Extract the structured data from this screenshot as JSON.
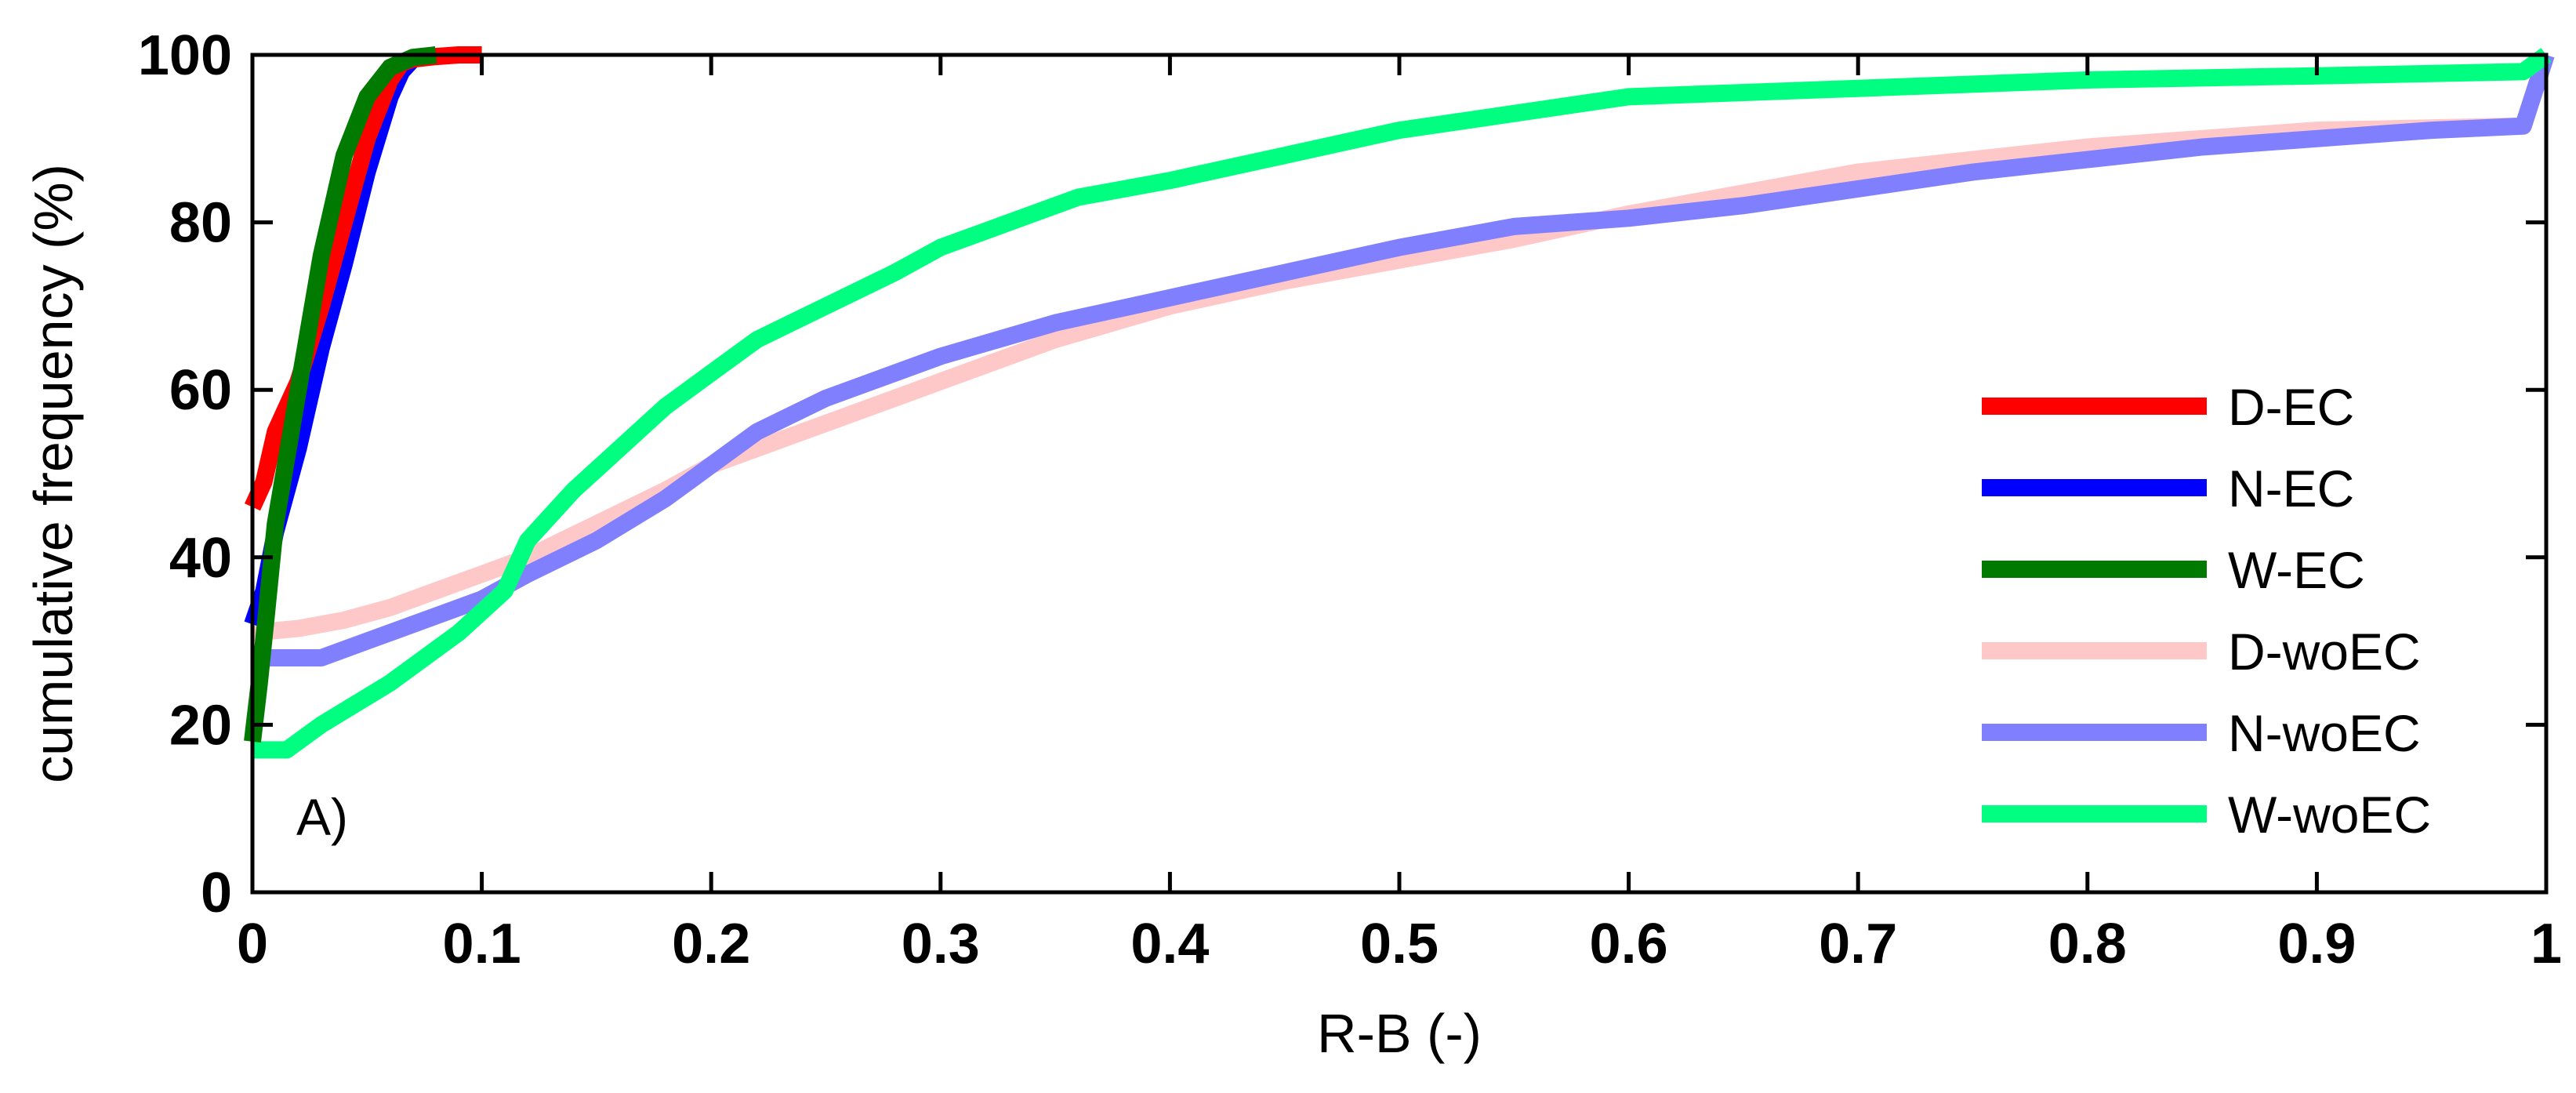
{
  "chart_data": {
    "type": "line",
    "title": "",
    "xlabel": "R-B (-)",
    "ylabel": "cumulative frequency (%)",
    "xlim": [
      0,
      1
    ],
    "ylim": [
      0,
      100
    ],
    "xticks": [
      0,
      0.1,
      0.2,
      0.3,
      0.4,
      0.5,
      0.6,
      0.7,
      0.8,
      0.9,
      1
    ],
    "xtick_labels": [
      "0",
      "0.1",
      "0.2",
      "0.3",
      "0.4",
      "0.5",
      "0.6",
      "0.7",
      "0.8",
      "0.9",
      "1"
    ],
    "yticks": [
      0,
      20,
      40,
      60,
      80,
      100
    ],
    "ytick_labels": [
      "0",
      "20",
      "40",
      "60",
      "80",
      "100"
    ],
    "grid": false,
    "legend_position": "bottom-right",
    "annotation": "A)",
    "series": [
      {
        "name": "D-EC",
        "color": "#ff0000",
        "x": [
          0,
          0.005,
          0.01,
          0.02,
          0.03,
          0.04,
          0.05,
          0.06,
          0.065,
          0.07,
          0.08,
          0.09,
          0.1
        ],
        "y": [
          46,
          49,
          55,
          61,
          70,
          80,
          90,
          97,
          99,
          99.5,
          99.8,
          100,
          100
        ]
      },
      {
        "name": "N-EC",
        "color": "#0000ff",
        "x": [
          0,
          0.005,
          0.01,
          0.02,
          0.03,
          0.04,
          0.05,
          0.06,
          0.065,
          0.07,
          0.08
        ],
        "y": [
          32,
          36,
          43,
          53,
          65,
          75,
          86,
          95,
          98,
          99.5,
          100
        ]
      },
      {
        "name": "W-EC",
        "color": "#007a00",
        "x": [
          0,
          0.003,
          0.006,
          0.01,
          0.015,
          0.02,
          0.03,
          0.04,
          0.05,
          0.06,
          0.07,
          0.08
        ],
        "y": [
          18,
          25,
          33,
          44,
          52,
          60,
          76,
          88,
          95,
          98.5,
          99.7,
          100
        ]
      },
      {
        "name": "D-woEC",
        "color": "#ffc8c8",
        "x": [
          0,
          0.02,
          0.04,
          0.06,
          0.08,
          0.1,
          0.12,
          0.15,
          0.18,
          0.2,
          0.25,
          0.3,
          0.35,
          0.4,
          0.45,
          0.5,
          0.55,
          0.6,
          0.7,
          0.8,
          0.9,
          0.99,
          1
        ],
        "y": [
          31,
          31.5,
          32.5,
          34,
          36,
          38,
          40,
          44,
          48,
          51,
          56,
          61,
          66,
          70,
          73,
          75.5,
          78,
          81,
          86,
          89,
          91,
          91.5,
          100
        ]
      },
      {
        "name": "N-woEC",
        "color": "#8080ff",
        "x": [
          0,
          0.03,
          0.05,
          0.08,
          0.1,
          0.12,
          0.15,
          0.18,
          0.2,
          0.22,
          0.25,
          0.3,
          0.35,
          0.4,
          0.45,
          0.5,
          0.55,
          0.6,
          0.65,
          0.7,
          0.75,
          0.8,
          0.85,
          0.9,
          0.95,
          0.99,
          1
        ],
        "y": [
          28,
          28,
          30,
          33,
          35,
          38,
          42,
          47,
          51,
          55,
          59,
          64,
          68,
          71,
          74,
          77,
          79.5,
          80.5,
          82,
          84,
          86,
          87.5,
          89,
          90,
          91,
          91.5,
          100
        ]
      },
      {
        "name": "W-woEC",
        "color": "#00ff80",
        "x": [
          0,
          0.015,
          0.03,
          0.06,
          0.09,
          0.11,
          0.12,
          0.14,
          0.16,
          0.18,
          0.2,
          0.22,
          0.25,
          0.28,
          0.3,
          0.33,
          0.36,
          0.4,
          0.45,
          0.5,
          0.55,
          0.6,
          0.7,
          0.8,
          0.9,
          0.99,
          1
        ],
        "y": [
          17,
          17,
          20,
          25,
          31,
          36,
          42,
          48,
          53,
          58,
          62,
          66,
          70,
          74,
          77,
          80,
          83,
          85,
          88,
          91,
          93,
          95,
          96,
          97,
          97.5,
          98,
          100
        ]
      }
    ]
  }
}
